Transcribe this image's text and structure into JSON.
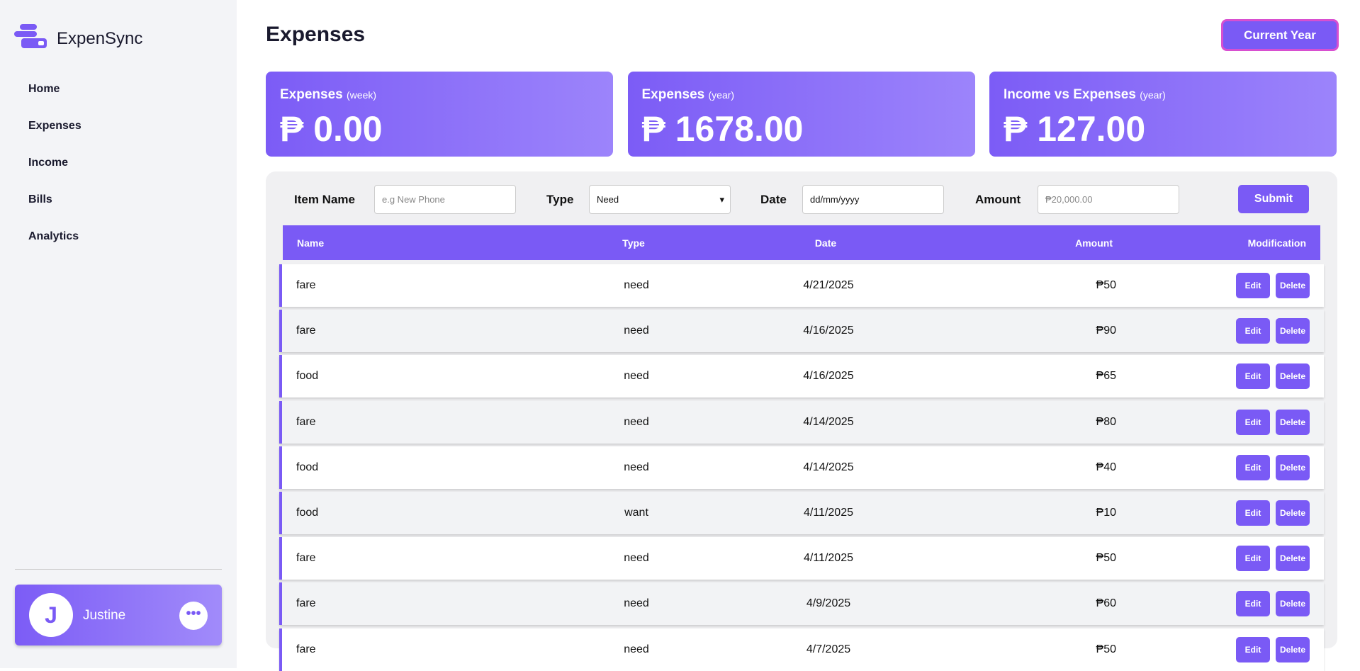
{
  "sidebar": {
    "brand": "ExpenSync",
    "nav": [
      "Home",
      "Expenses",
      "Income",
      "Bills",
      "Analytics"
    ],
    "user": {
      "initial": "J",
      "name": "Justine"
    }
  },
  "header": {
    "title": "Expenses",
    "button": "Current Year"
  },
  "cards": [
    {
      "label": "Expenses",
      "period": "(week)",
      "amount": "₱ 0.00"
    },
    {
      "label": "Expenses",
      "period": "(year)",
      "amount": "₱ 1678.00"
    },
    {
      "label": "Income vs Expenses",
      "period": "(year)",
      "amount": "₱ 127.00"
    }
  ],
  "form": {
    "item_label": "Item Name",
    "item_placeholder": "e.g New Phone",
    "type_label": "Type",
    "type_value": "Need",
    "date_label": "Date",
    "date_placeholder": "dd/mm/yyyy",
    "amount_label": "Amount",
    "amount_placeholder": "₱20,000.00",
    "submit": "Submit"
  },
  "table": {
    "columns": [
      "Name",
      "Type",
      "Date",
      "Amount",
      "Modification"
    ],
    "edit": "Edit",
    "delete": "Delete",
    "rows": [
      [
        "fare",
        "need",
        "4/21/2025",
        "₱50"
      ],
      [
        "fare",
        "need",
        "4/16/2025",
        "₱90"
      ],
      [
        "food",
        "need",
        "4/16/2025",
        "₱65"
      ],
      [
        "fare",
        "need",
        "4/14/2025",
        "₱80"
      ],
      [
        "food",
        "need",
        "4/14/2025",
        "₱40"
      ],
      [
        "food",
        "want",
        "4/11/2025",
        "₱10"
      ],
      [
        "fare",
        "need",
        "4/11/2025",
        "₱50"
      ],
      [
        "fare",
        "need",
        "4/9/2025",
        "₱60"
      ],
      [
        "fare",
        "need",
        "4/7/2025",
        "₱50"
      ]
    ]
  }
}
